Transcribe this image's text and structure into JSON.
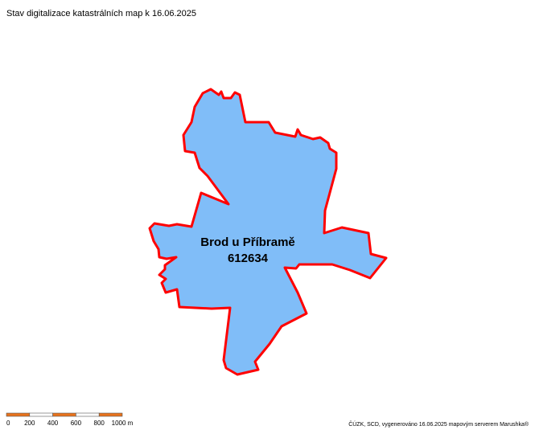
{
  "header": {
    "title": "Stav digitalizace katastrálních map k 16.06.2025"
  },
  "area": {
    "name": "Brod u Příbramě",
    "code": "612634"
  },
  "scale_bar": {
    "labels": [
      "0",
      "200",
      "400",
      "600",
      "800",
      "1000 m"
    ]
  },
  "footer": {
    "attribution": "ČÚZK, SCD, vygenerováno 16.06.2025 mapovým serverem Marushka®"
  }
}
